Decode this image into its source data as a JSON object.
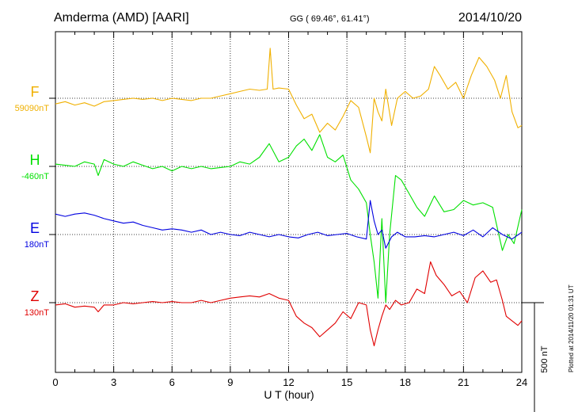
{
  "header": {
    "station": "Amderma (AMD)  [AARI]",
    "coords": "GG ( 69.46°,  61.41°)",
    "date": "2014/10/20"
  },
  "scale_label": "500 nT",
  "plotted_note": "Plotted at 2014/11/20 01:31  UT",
  "chart_data": {
    "type": "line",
    "xlabel": "U T (hour)",
    "xlim": [
      0,
      24
    ],
    "xticks": [
      "0",
      "3",
      "6",
      "9",
      "12",
      "15",
      "18",
      "21",
      "24"
    ],
    "scale_nT": 500,
    "series": [
      {
        "name": "F",
        "baseline": "59090nT",
        "color": "#f0b000",
        "offset_nT": 0,
        "x": [
          0,
          0.5,
          1,
          1.5,
          2,
          2.5,
          3,
          3.5,
          4,
          4.5,
          5,
          5.5,
          6,
          6.5,
          7,
          7.5,
          8,
          8.5,
          9,
          9.5,
          10,
          10.5,
          10.9,
          11.05,
          11.2,
          11.5,
          12,
          12.4,
          12.8,
          13.2,
          13.6,
          14,
          14.4,
          14.8,
          15.2,
          15.6,
          16,
          16.2,
          16.4,
          16.6,
          16.8,
          17,
          17.3,
          17.6,
          18,
          18.4,
          18.8,
          19.2,
          19.5,
          19.8,
          20.2,
          20.6,
          21,
          21.4,
          21.8,
          22.2,
          22.6,
          22.9,
          23.2,
          23.5,
          23.8,
          24
        ],
        "values": [
          -25,
          -15,
          -30,
          -20,
          -35,
          -15,
          -10,
          -5,
          0,
          -5,
          0,
          -10,
          0,
          -5,
          -10,
          0,
          0,
          10,
          20,
          30,
          40,
          35,
          40,
          220,
          40,
          45,
          40,
          -30,
          -90,
          -70,
          -150,
          -110,
          -140,
          -80,
          -10,
          -40,
          -170,
          -240,
          0,
          -60,
          -100,
          40,
          -120,
          0,
          30,
          0,
          10,
          40,
          140,
          100,
          40,
          70,
          0,
          100,
          180,
          140,
          80,
          0,
          100,
          -60,
          -130,
          -120
        ]
      },
      {
        "name": "H",
        "baseline": "-460nT",
        "color": "#00e000",
        "offset_nT": -300,
        "x": [
          0,
          0.5,
          1,
          1.5,
          2,
          2.2,
          2.5,
          3,
          3.5,
          4,
          4.5,
          5,
          5.5,
          6,
          6.5,
          7,
          7.5,
          8,
          8.5,
          9,
          9.5,
          10,
          10.5,
          11,
          11.5,
          12,
          12.4,
          12.8,
          13.2,
          13.6,
          14,
          14.4,
          14.8,
          15.2,
          15.6,
          16,
          16.2,
          16.4,
          16.6,
          16.8,
          17,
          17.2,
          17.5,
          17.8,
          18.2,
          18.6,
          19,
          19.5,
          20,
          20.5,
          21,
          21.5,
          22,
          22.5,
          23,
          23.3,
          23.6,
          24
        ],
        "values": [
          10,
          5,
          0,
          20,
          10,
          -40,
          30,
          10,
          0,
          20,
          5,
          -10,
          0,
          -20,
          0,
          -10,
          0,
          -10,
          -5,
          0,
          20,
          10,
          40,
          100,
          20,
          40,
          90,
          120,
          70,
          140,
          40,
          20,
          50,
          -60,
          -100,
          -160,
          -300,
          -420,
          -580,
          -230,
          -600,
          -300,
          -40,
          -60,
          -120,
          -180,
          -220,
          -130,
          -200,
          -190,
          -150,
          -170,
          -160,
          -180,
          -370,
          -300,
          -340,
          -190
        ]
      },
      {
        "name": "E",
        "baseline": "180nT",
        "color": "#0000e0",
        "offset_nT": -600,
        "x": [
          0,
          0.5,
          1,
          1.5,
          2,
          2.5,
          3,
          3.5,
          4,
          4.5,
          5,
          5.5,
          6,
          6.5,
          7,
          7.5,
          8,
          8.5,
          9,
          9.5,
          10,
          10.5,
          11,
          11.5,
          12,
          12.5,
          13,
          13.5,
          14,
          14.5,
          15,
          15.5,
          16,
          16.2,
          16.4,
          16.6,
          16.8,
          17,
          17.3,
          17.6,
          18,
          18.5,
          19,
          19.5,
          20,
          20.5,
          21,
          21.5,
          22,
          22.5,
          23,
          23.5,
          24
        ],
        "values": [
          90,
          80,
          90,
          95,
          85,
          70,
          60,
          50,
          55,
          40,
          30,
          20,
          25,
          20,
          10,
          20,
          0,
          10,
          0,
          -5,
          10,
          0,
          -10,
          0,
          -10,
          -15,
          0,
          10,
          -5,
          0,
          5,
          -10,
          -20,
          150,
          60,
          0,
          20,
          -60,
          -10,
          10,
          -10,
          -10,
          -5,
          -10,
          0,
          10,
          -5,
          20,
          -10,
          30,
          0,
          -20,
          10
        ]
      },
      {
        "name": "Z",
        "baseline": "130nT",
        "color": "#e00000",
        "offset_nT": -900,
        "x": [
          0,
          0.5,
          1,
          1.5,
          2,
          2.2,
          2.5,
          3,
          3.5,
          4,
          4.5,
          5,
          5.5,
          6,
          6.5,
          7,
          7.5,
          8,
          8.5,
          9,
          9.5,
          10,
          10.5,
          11,
          11.5,
          12,
          12.4,
          12.8,
          13.2,
          13.6,
          14,
          14.4,
          14.8,
          15.2,
          15.6,
          16,
          16.2,
          16.4,
          16.6,
          16.8,
          17,
          17.2,
          17.5,
          17.8,
          18.2,
          18.6,
          19,
          19.3,
          19.6,
          20,
          20.4,
          20.8,
          21.2,
          21.6,
          22,
          22.4,
          22.7,
          23,
          23.2,
          23.5,
          23.8,
          24
        ],
        "values": [
          -10,
          -5,
          -20,
          -15,
          -20,
          -40,
          -10,
          -10,
          0,
          -5,
          0,
          5,
          0,
          5,
          0,
          0,
          10,
          0,
          10,
          20,
          25,
          30,
          25,
          40,
          20,
          10,
          -60,
          -90,
          -110,
          -150,
          -120,
          -90,
          -40,
          -70,
          0,
          -10,
          -120,
          -190,
          -120,
          -60,
          -10,
          -30,
          10,
          -10,
          0,
          60,
          40,
          180,
          120,
          80,
          30,
          50,
          0,
          110,
          140,
          90,
          100,
          10,
          -60,
          -80,
          -100,
          -80
        ]
      }
    ]
  }
}
